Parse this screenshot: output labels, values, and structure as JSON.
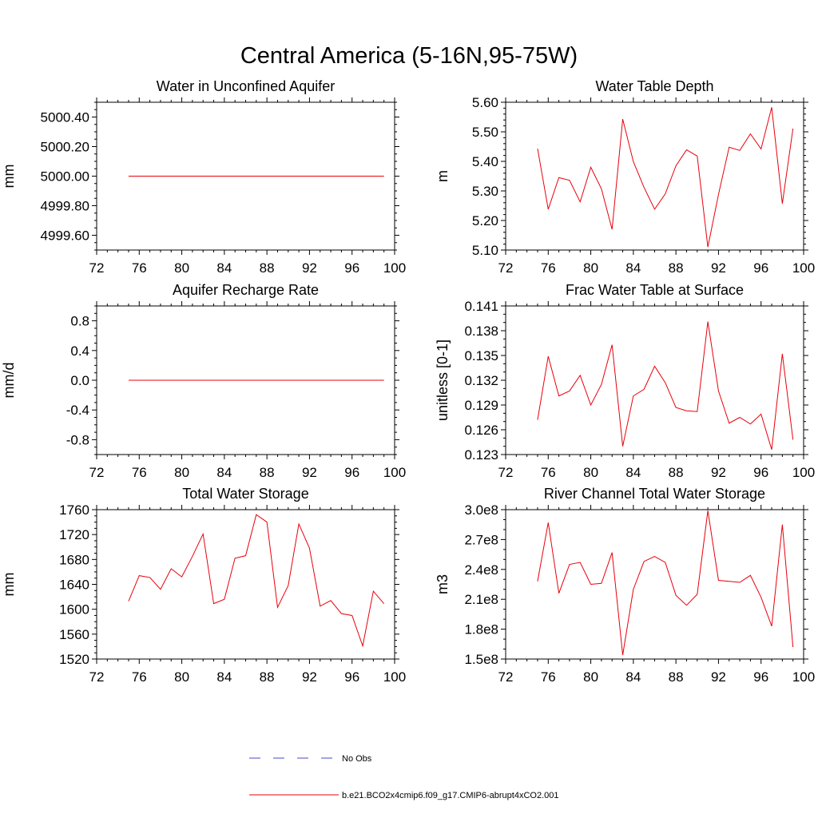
{
  "figure": {
    "title": "Central America (5-16N,95-75W)"
  },
  "legend": {
    "entries": [
      {
        "label": "No Obs",
        "color": "#4a4ac8",
        "style": "dashed"
      },
      {
        "label": "b.e21.BCO2x4cmip6.f09_g17.CMIP6-abrupt4xCO2.001",
        "color": "#e8000b",
        "style": "solid"
      }
    ]
  },
  "chart_data": [
    {
      "type": "line",
      "title": "Water in Unconfined Aquifer",
      "ylabel": "mm",
      "xlim": [
        72,
        100
      ],
      "xticks": [
        72,
        76,
        80,
        84,
        88,
        92,
        96,
        100
      ],
      "ylim": [
        4999.5,
        5000.5
      ],
      "yticks": [
        4999.6,
        4999.8,
        5000.0,
        5000.2,
        5000.4
      ],
      "yticklabels": [
        "4999.60",
        "4999.80",
        "5000.00",
        "5000.20",
        "5000.40"
      ],
      "yminor": 0.05,
      "series": [
        {
          "name": "b.e21.BCO2x4cmip6.f09_g17.CMIP6-abrupt4xCO2.001",
          "color": "#e8000b",
          "x": [
            75,
            76,
            77,
            78,
            79,
            80,
            81,
            82,
            83,
            84,
            85,
            86,
            87,
            88,
            89,
            90,
            91,
            92,
            93,
            94,
            95,
            96,
            97,
            98,
            99
          ],
          "values": [
            5000,
            5000,
            5000,
            5000,
            5000,
            5000,
            5000,
            5000,
            5000,
            5000,
            5000,
            5000,
            5000,
            5000,
            5000,
            5000,
            5000,
            5000,
            5000,
            5000,
            5000,
            5000,
            5000,
            5000,
            5000
          ]
        }
      ]
    },
    {
      "type": "line",
      "title": "Water Table Depth",
      "ylabel": "m",
      "xlim": [
        72,
        100
      ],
      "xticks": [
        72,
        76,
        80,
        84,
        88,
        92,
        96,
        100
      ],
      "ylim": [
        5.1,
        5.6
      ],
      "yticks": [
        5.1,
        5.2,
        5.3,
        5.4,
        5.5,
        5.6
      ],
      "yticklabels": [
        "5.10",
        "5.20",
        "5.30",
        "5.40",
        "5.50",
        "5.60"
      ],
      "yminor": 0.02,
      "series": [
        {
          "name": "b.e21.BCO2x4cmip6.f09_g17.CMIP6-abrupt4xCO2.001",
          "color": "#e8000b",
          "x": [
            75,
            76,
            77,
            78,
            79,
            80,
            81,
            82,
            83,
            84,
            85,
            86,
            87,
            88,
            89,
            90,
            91,
            92,
            93,
            94,
            95,
            96,
            97,
            98,
            99
          ],
          "values": [
            5.443,
            5.238,
            5.345,
            5.336,
            5.263,
            5.38,
            5.307,
            5.17,
            5.543,
            5.399,
            5.312,
            5.238,
            5.29,
            5.385,
            5.439,
            5.418,
            5.11,
            5.288,
            5.448,
            5.437,
            5.493,
            5.442,
            5.583,
            5.257,
            5.511
          ]
        }
      ]
    },
    {
      "type": "line",
      "title": "Aquifer Recharge Rate",
      "ylabel": "mm/d",
      "xlim": [
        72,
        100
      ],
      "xticks": [
        72,
        76,
        80,
        84,
        88,
        92,
        96,
        100
      ],
      "ylim": [
        -1.0,
        1.0
      ],
      "yticks": [
        -0.8,
        -0.4,
        0.0,
        0.4,
        0.8
      ],
      "yticklabels": [
        "-0.8",
        "-0.4",
        "0.0",
        "0.4",
        "0.8"
      ],
      "yminor": 0.1,
      "series": [
        {
          "name": "b.e21.BCO2x4cmip6.f09_g17.CMIP6-abrupt4xCO2.001",
          "color": "#e8000b",
          "x": [
            75,
            76,
            77,
            78,
            79,
            80,
            81,
            82,
            83,
            84,
            85,
            86,
            87,
            88,
            89,
            90,
            91,
            92,
            93,
            94,
            95,
            96,
            97,
            98,
            99
          ],
          "values": [
            0,
            0,
            0,
            0,
            0,
            0,
            0,
            0,
            0,
            0,
            0,
            0,
            0,
            0,
            0,
            0,
            0,
            0,
            0,
            0,
            0,
            0,
            0,
            0,
            0
          ]
        }
      ]
    },
    {
      "type": "line",
      "title": "Frac Water Table at Surface",
      "ylabel": "unitless [0-1]",
      "xlim": [
        72,
        100
      ],
      "xticks": [
        72,
        76,
        80,
        84,
        88,
        92,
        96,
        100
      ],
      "ylim": [
        0.123,
        0.141
      ],
      "yticks": [
        0.123,
        0.126,
        0.129,
        0.132,
        0.135,
        0.138,
        0.141
      ],
      "yticklabels": [
        "0.123",
        "0.126",
        "0.129",
        "0.132",
        "0.135",
        "0.138",
        "0.141"
      ],
      "yminor": 0.001,
      "series": [
        {
          "name": "b.e21.BCO2x4cmip6.f09_g17.CMIP6-abrupt4xCO2.001",
          "color": "#e8000b",
          "x": [
            75,
            76,
            77,
            78,
            79,
            80,
            81,
            82,
            83,
            84,
            85,
            86,
            87,
            88,
            89,
            90,
            91,
            92,
            93,
            94,
            95,
            96,
            97,
            98,
            99
          ],
          "values": [
            0.1272,
            0.1349,
            0.1301,
            0.1307,
            0.1326,
            0.129,
            0.1315,
            0.1363,
            0.124,
            0.1301,
            0.1309,
            0.1337,
            0.1317,
            0.1287,
            0.1283,
            0.1282,
            0.1391,
            0.1307,
            0.1268,
            0.1275,
            0.1267,
            0.1279,
            0.1236,
            0.1352,
            0.1248
          ]
        }
      ]
    },
    {
      "type": "line",
      "title": "Total Water Storage",
      "ylabel": "mm",
      "xlim": [
        72,
        100
      ],
      "xticks": [
        72,
        76,
        80,
        84,
        88,
        92,
        96,
        100
      ],
      "ylim": [
        1520,
        1760
      ],
      "yticks": [
        1520,
        1560,
        1600,
        1640,
        1680,
        1720,
        1760
      ],
      "yticklabels": [
        "1520",
        "1560",
        "1600",
        "1640",
        "1680",
        "1720",
        "1760"
      ],
      "yminor": 10,
      "series": [
        {
          "name": "b.e21.BCO2x4cmip6.f09_g17.CMIP6-abrupt4xCO2.001",
          "color": "#e8000b",
          "x": [
            75,
            76,
            77,
            78,
            79,
            80,
            81,
            82,
            83,
            84,
            85,
            86,
            87,
            88,
            89,
            90,
            91,
            92,
            93,
            94,
            95,
            96,
            97,
            98,
            99
          ],
          "values": [
            1613,
            1654,
            1651,
            1632,
            1665,
            1652,
            1685,
            1721,
            1609,
            1616,
            1682,
            1686,
            1752,
            1740,
            1603,
            1638,
            1737,
            1698,
            1605,
            1614,
            1593,
            1590,
            1541,
            1629,
            1609
          ]
        }
      ]
    },
    {
      "type": "line",
      "title": "River Channel Total Water Storage",
      "ylabel": "m3",
      "xlim": [
        72,
        100
      ],
      "xticks": [
        72,
        76,
        80,
        84,
        88,
        92,
        96,
        100
      ],
      "ylim": [
        150000000.0,
        300000000.0
      ],
      "yticks": [
        150000000.0,
        180000000.0,
        210000000.0,
        240000000.0,
        270000000.0,
        300000000.0
      ],
      "yticklabels": [
        "1.5e8",
        "1.8e8",
        "2.1e8",
        "2.4e8",
        "2.7e8",
        "3.0e8"
      ],
      "yminor": 10000000.0,
      "series": [
        {
          "name": "b.e21.BCO2x4cmip6.f09_g17.CMIP6-abrupt4xCO2.001",
          "color": "#e8000b",
          "x": [
            75,
            76,
            77,
            78,
            79,
            80,
            81,
            82,
            83,
            84,
            85,
            86,
            87,
            88,
            89,
            90,
            91,
            92,
            93,
            94,
            95,
            96,
            97,
            98,
            99
          ],
          "values": [
            228000000.0,
            287000000.0,
            216000000.0,
            245000000.0,
            247000000.0,
            225000000.0,
            226000000.0,
            257000000.0,
            154000000.0,
            220000000.0,
            248000000.0,
            253000000.0,
            247000000.0,
            214000000.0,
            204000000.0,
            215000000.0,
            299000000.0,
            229000000.0,
            228000000.0,
            227000000.0,
            234000000.0,
            212000000.0,
            183000000.0,
            285000000.0,
            162000000.0
          ]
        }
      ]
    }
  ]
}
